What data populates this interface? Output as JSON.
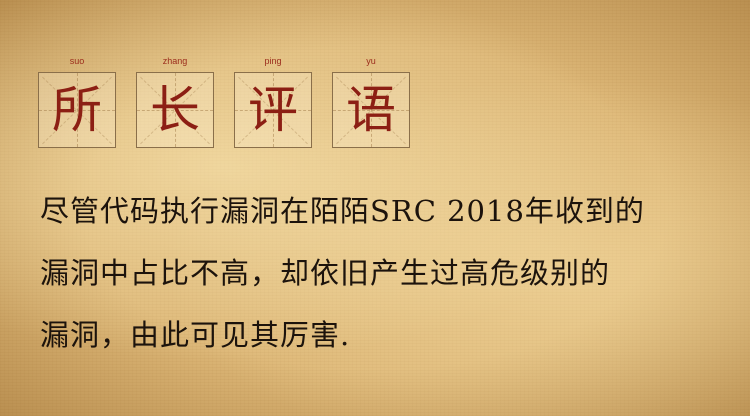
{
  "title": {
    "chars": [
      {
        "char": "所",
        "pinyin": "suo"
      },
      {
        "char": "长",
        "pinyin": "zhang"
      },
      {
        "char": "评",
        "pinyin": "ping"
      },
      {
        "char": "语",
        "pinyin": "yu"
      }
    ]
  },
  "body": {
    "lines": [
      "尽管代码执行漏洞在陌陌SRC 2018年收到的",
      "漏洞中占比不高，却依旧产生过高危级别的",
      "漏洞，由此可见其厉害."
    ]
  },
  "colors": {
    "title_char": "#8c1f14",
    "pinyin": "#9b2c1c",
    "body_text": "#1c130c",
    "background": "#ddb777"
  }
}
